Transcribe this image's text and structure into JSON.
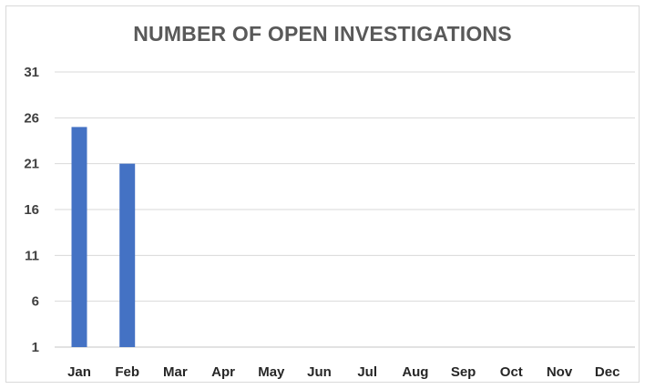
{
  "chart_data": {
    "type": "bar",
    "title": "NUMBER OF OPEN INVESTIGATIONS",
    "xlabel": "",
    "ylabel": "",
    "categories": [
      "Jan",
      "Feb",
      "Mar",
      "Apr",
      "May",
      "Jun",
      "Jul",
      "Aug",
      "Sep",
      "Oct",
      "Nov",
      "Dec"
    ],
    "values": [
      25,
      21,
      null,
      null,
      null,
      null,
      null,
      null,
      null,
      null,
      null,
      null
    ],
    "ylim": [
      1,
      31
    ],
    "yticks": [
      1,
      6,
      11,
      16,
      21,
      26,
      31
    ],
    "grid": true,
    "legend": "none",
    "bar_color": "#4472c4",
    "grid_color": "#d9d9d9"
  }
}
